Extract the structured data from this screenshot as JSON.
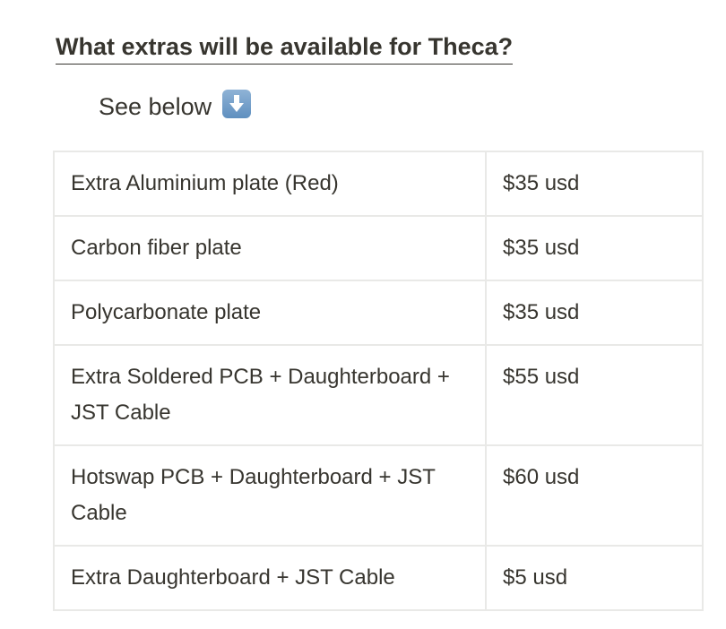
{
  "heading": "What extras will be available for Theca?",
  "intro": {
    "text": "See below",
    "emoji": "down-arrow-button-icon"
  },
  "table": {
    "rows": [
      {
        "item": "Extra Aluminium plate (Red)",
        "price": "$35 usd"
      },
      {
        "item": "Carbon fiber plate",
        "price": "$35 usd"
      },
      {
        "item": "Polycarbonate plate",
        "price": "$35 usd"
      },
      {
        "item": "Extra Soldered PCB + Daughterboard + JST Cable",
        "price": "$55 usd"
      },
      {
        "item": "Hotswap PCB + Daughterboard + JST Cable",
        "price": "$60 usd"
      },
      {
        "item": "Extra Daughterboard + JST Cable",
        "price": "$5 usd"
      }
    ]
  },
  "colors": {
    "text": "#37352f",
    "border": "#e9e9e7"
  }
}
